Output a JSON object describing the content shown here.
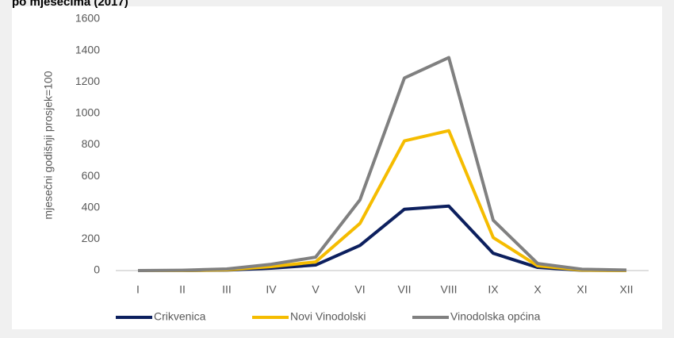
{
  "chart_data": {
    "type": "line",
    "title": "po mjesecima (2017)",
    "y_label": "mjesečni godišnji prosjek=100",
    "categories": [
      "I",
      "II",
      "III",
      "IV",
      "V",
      "VI",
      "VII",
      "VIII",
      "IX",
      "X",
      "XI",
      "XII"
    ],
    "series": [
      {
        "name": "Crikvenica",
        "color": "#0c1f5e",
        "values": [
          0,
          0,
          3,
          15,
          35,
          160,
          390,
          410,
          110,
          20,
          2,
          0
        ]
      },
      {
        "name": "Novi Vinodolski",
        "color": "#f5bc00",
        "values": [
          0,
          0,
          5,
          25,
          55,
          300,
          825,
          890,
          210,
          30,
          3,
          0
        ]
      },
      {
        "name": "Vinodolska općina",
        "color": "#808080",
        "values": [
          0,
          2,
          10,
          40,
          85,
          450,
          1225,
          1355,
          320,
          45,
          8,
          3
        ]
      }
    ],
    "ylim": [
      0,
      1600
    ],
    "yticks": [
      0,
      200,
      400,
      600,
      800,
      1000,
      1200,
      1400,
      1600
    ],
    "grid": false,
    "legend": "bottom"
  }
}
